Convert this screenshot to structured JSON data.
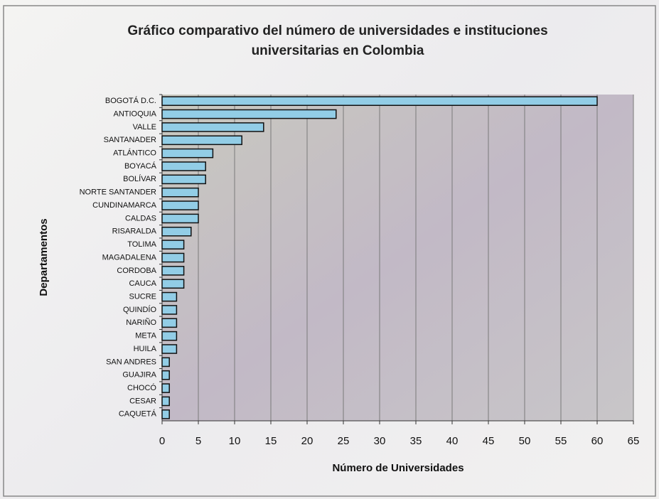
{
  "chart_data": {
    "type": "bar",
    "orientation": "horizontal",
    "title": "Gráfico comparativo del número de universidades e instituciones universitarias en Colombia",
    "x_label": "Número de Universidades",
    "y_label": "Departamentos",
    "categories": [
      "BOGOTÁ D.C.",
      "ANTIOQUIA",
      "VALLE",
      "SANTANADER",
      "ATLÁNTICO",
      "BOYACÁ",
      "BOLÍVAR",
      "NORTE SANTANDER",
      "CUNDINAMARCA",
      "CALDAS",
      "RISARALDA",
      "TOLIMA",
      "MAGADALENA",
      "CORDOBA",
      "CAUCA",
      "SUCRE",
      "QUINDÍO",
      "NARIÑO",
      "META",
      "HUILA",
      "SAN ANDRES",
      "GUAJIRA",
      "CHOCÓ",
      "CESAR",
      "CAQUETÁ"
    ],
    "values": [
      60,
      24,
      14,
      11,
      7,
      6,
      6,
      5,
      5,
      5,
      4,
      3,
      3,
      3,
      3,
      2,
      2,
      2,
      2,
      2,
      1,
      1,
      1,
      1,
      1
    ],
    "color": "#92cde6",
    "xlim": [
      0,
      65
    ],
    "xticks": [
      0,
      5,
      10,
      15,
      20,
      25,
      30,
      35,
      40,
      45,
      50,
      55,
      60,
      65
    ],
    "grid": true
  }
}
